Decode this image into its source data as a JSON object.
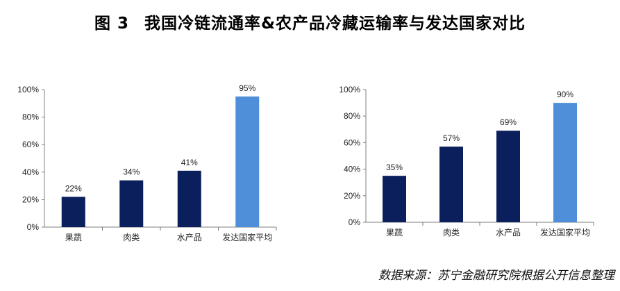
{
  "figure_label": "图 3",
  "title": "我国冷链流通率&农产品冷藏运输率与发达国家对比",
  "source": "数据来源：苏宁金融研究院根据公开信息整理",
  "colors": {
    "dark": "#0b1f5c",
    "light": "#4f8fd9",
    "axis": "#7f7f7f"
  },
  "chart_data": [
    {
      "type": "bar",
      "categories": [
        "果蔬",
        "肉类",
        "水产品",
        "发达国家平均"
      ],
      "values": [
        22,
        34,
        41,
        95
      ],
      "data_labels": [
        "22%",
        "34%",
        "41%",
        "95%"
      ],
      "yticks": [
        "0%",
        "20%",
        "40%",
        "60%",
        "80%",
        "100%"
      ],
      "ylim": [
        0,
        100
      ]
    },
    {
      "type": "bar",
      "categories": [
        "果蔬",
        "肉类",
        "水产品",
        "发达国家平均"
      ],
      "values": [
        35,
        57,
        69,
        90
      ],
      "data_labels": [
        "35%",
        "57%",
        "69%",
        "90%"
      ],
      "yticks": [
        "0%",
        "20%",
        "40%",
        "60%",
        "80%",
        "100%"
      ],
      "ylim": [
        0,
        100
      ]
    }
  ]
}
